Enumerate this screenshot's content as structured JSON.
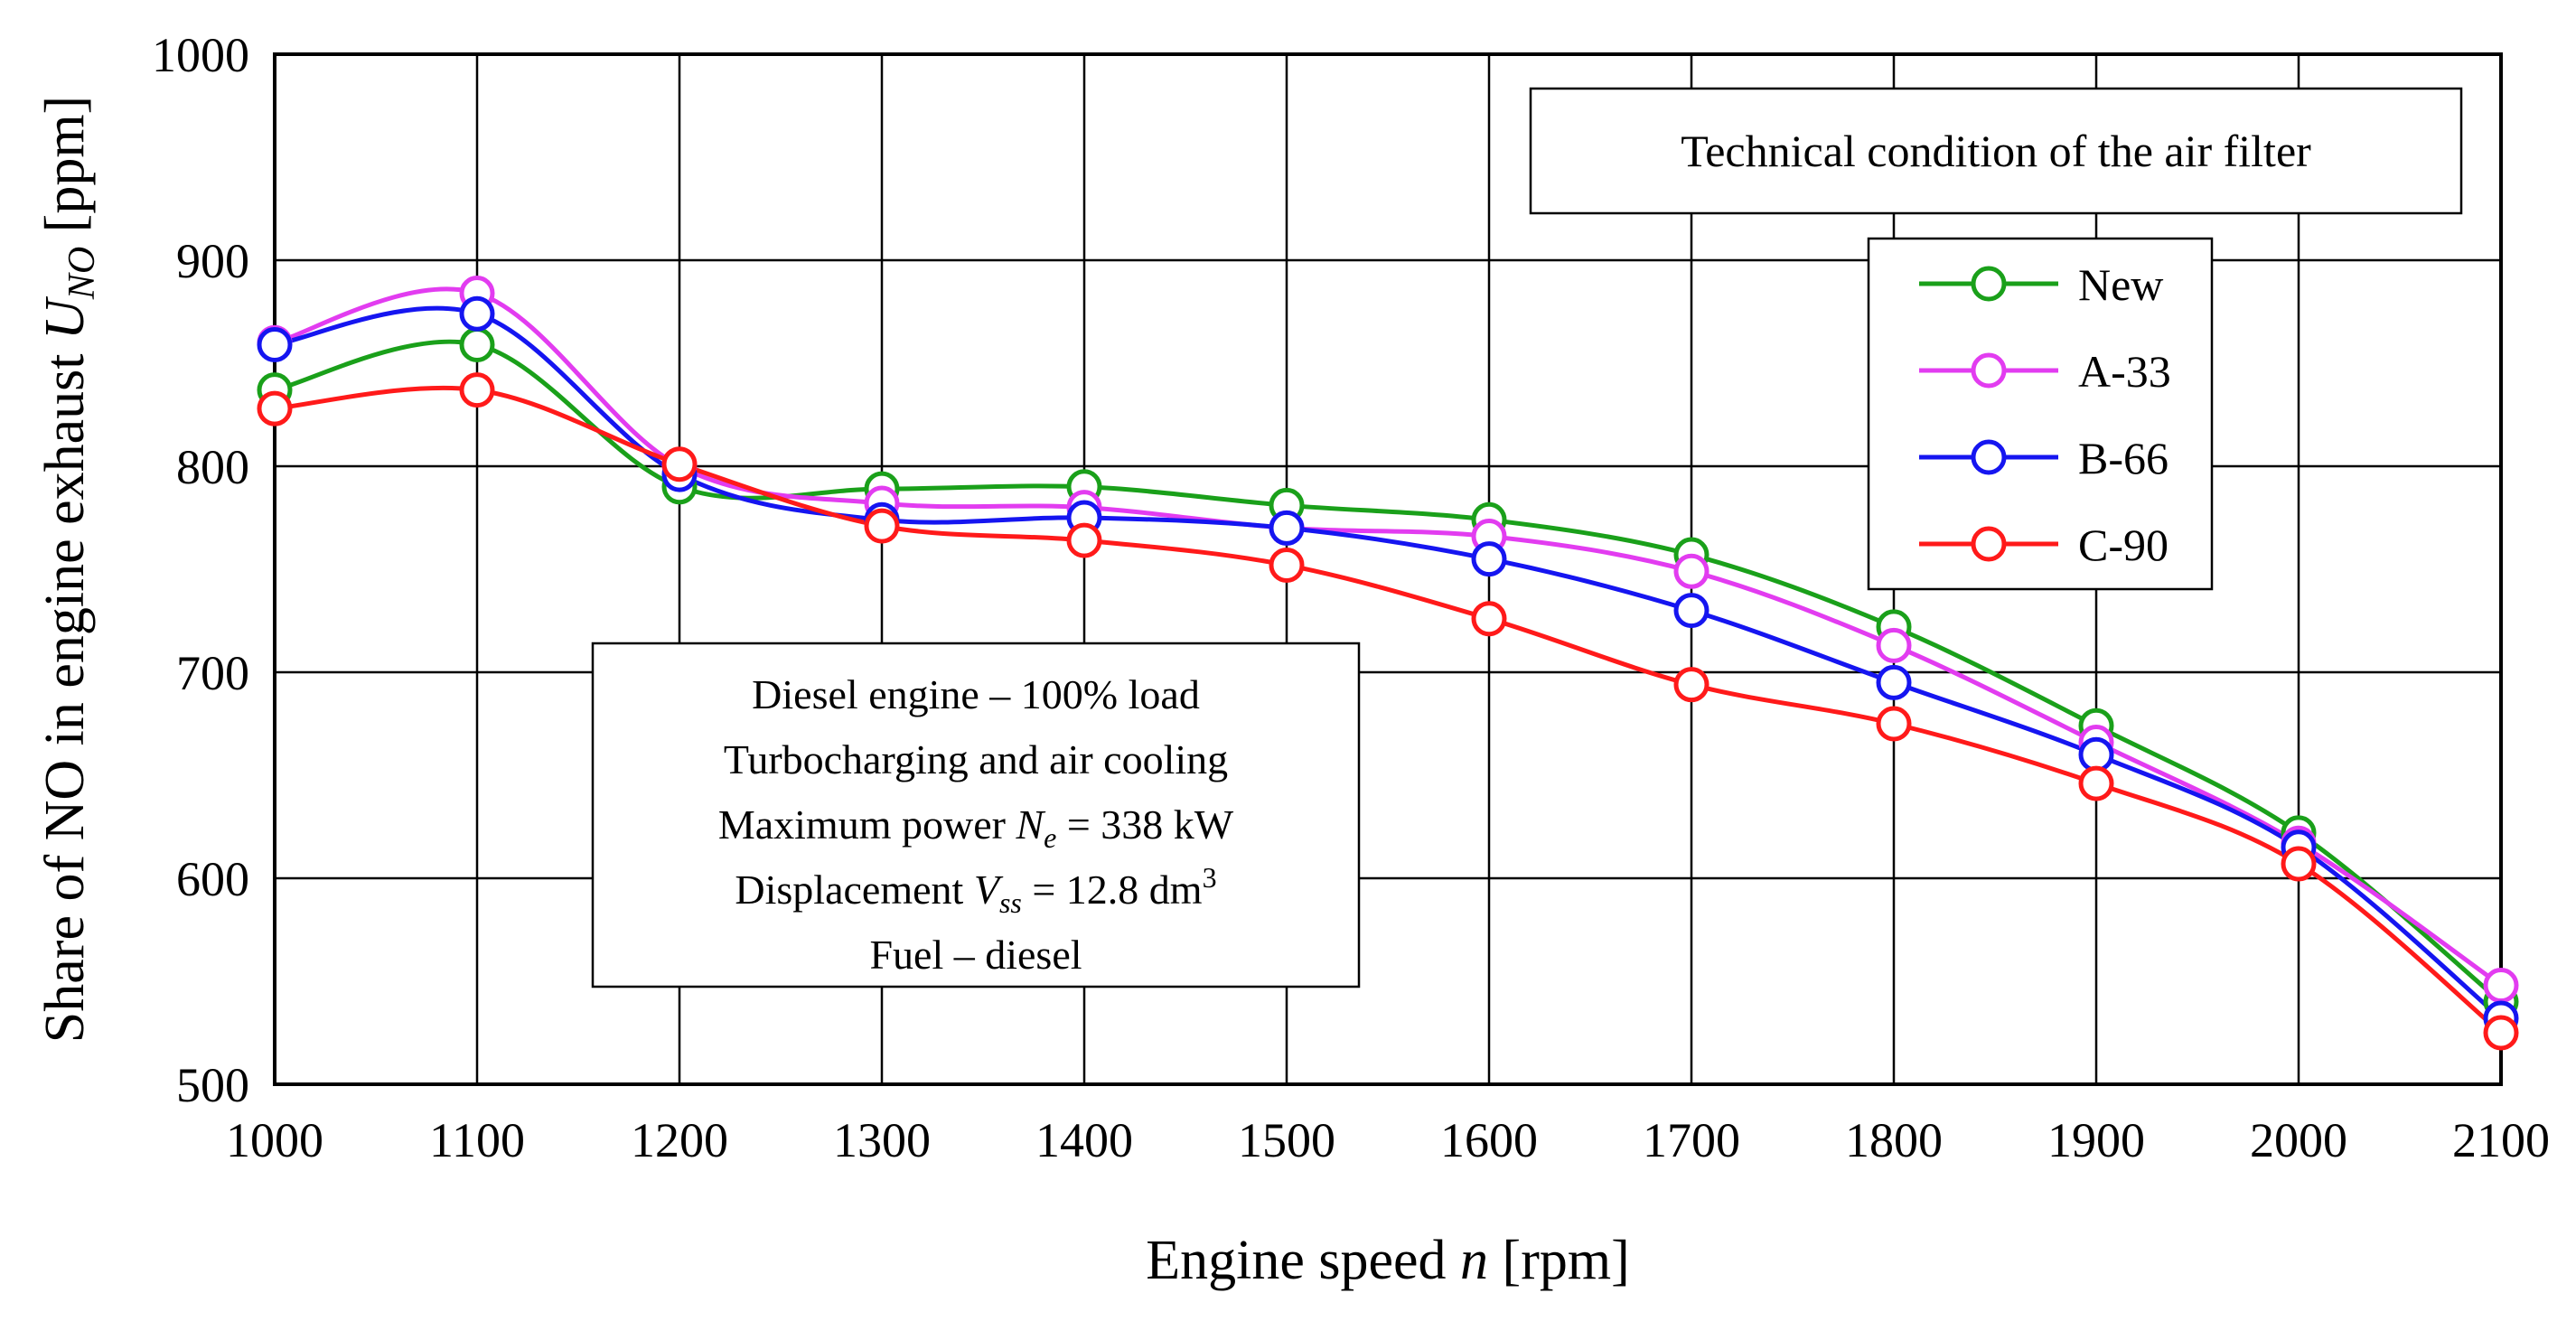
{
  "chart_data": {
    "type": "line",
    "title": "",
    "xlabel": {
      "main": "Engine speed ",
      "var": "n",
      "unit": " [rpm]"
    },
    "ylabel": {
      "main": "Share of NO in engine exhaust ",
      "var": "U",
      "sub": "NO",
      "unit": " [ppm]"
    },
    "xlim": [
      1000,
      2100
    ],
    "ylim": [
      500,
      1000
    ],
    "x_ticks": [
      1000,
      1100,
      1200,
      1300,
      1400,
      1500,
      1600,
      1700,
      1800,
      1900,
      2000,
      2100
    ],
    "y_ticks": [
      500,
      600,
      700,
      800,
      900,
      1000
    ],
    "grid": true,
    "legend": {
      "title": "Technical condition  of the air filter",
      "placement": "top-right"
    },
    "x": [
      1000,
      1100,
      1200,
      1300,
      1400,
      1500,
      1600,
      1700,
      1800,
      1900,
      2000,
      2100
    ],
    "series": [
      {
        "name": "New",
        "color": "#1aa01a",
        "values": [
          837,
          859,
          790,
          789,
          790,
          781,
          774,
          757,
          722,
          674,
          622,
          540
        ]
      },
      {
        "name": "A-33",
        "color": "#e23cf0",
        "values": [
          860,
          884,
          800,
          782,
          780,
          770,
          766,
          749,
          713,
          666,
          617,
          548
        ]
      },
      {
        "name": "B-66",
        "color": "#1515f0",
        "values": [
          859,
          874,
          796,
          774,
          775,
          770,
          755,
          730,
          695,
          660,
          615,
          532
        ]
      },
      {
        "name": "C-90",
        "color": "#ff1a1a",
        "values": [
          828,
          837,
          801,
          771,
          764,
          752,
          726,
          694,
          675,
          646,
          607,
          525
        ]
      }
    ],
    "annotation": {
      "line1": "Diesel engine – 100% load",
      "line2": "Turbocharging and air cooling",
      "line3": {
        "pre": "Maximum power ",
        "var": "N",
        "sub": "e",
        "post": " = 338 kW"
      },
      "line4": {
        "pre": "Displacement ",
        "var": "V",
        "sub": "ss",
        "post": " = 12.8 dm",
        "sup": "3"
      },
      "line5": "Fuel – diesel"
    }
  }
}
